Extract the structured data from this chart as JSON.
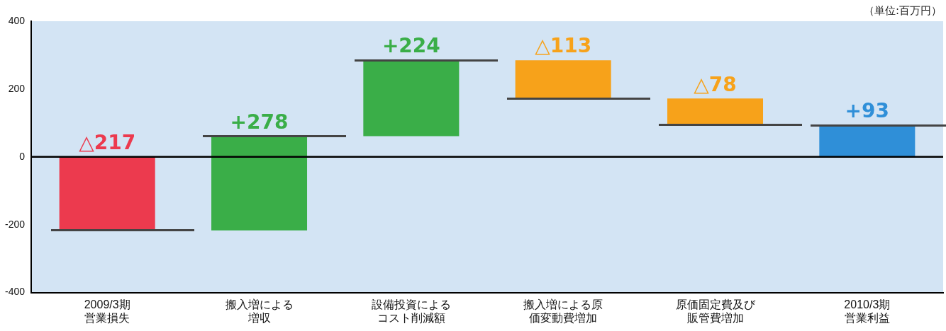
{
  "chart_data": {
    "type": "bar",
    "categories": [
      "2009/3期営業損失",
      "搬入増による増収",
      "設備投資によるコスト削減額",
      "搬入増による原価変動費増加",
      "原価固定費及び販管費増加",
      "2010/3期営業利益"
    ],
    "values": [
      -217,
      278,
      224,
      -113,
      -78,
      93
    ],
    "base": [
      0,
      -217,
      61,
      285,
      172,
      0
    ],
    "colors": [
      "#ec3a4e",
      "#3aae48",
      "#3aae48",
      "#f7a21a",
      "#f7a21a",
      "#2f8fd8"
    ],
    "value_labels": [
      "△217",
      "+278",
      "+224",
      "△113",
      "△78",
      "+93"
    ],
    "ylim": [
      -400,
      400
    ],
    "yticks": [
      -400,
      -200,
      0,
      200,
      400
    ],
    "grid": false,
    "ref_lines": [
      {
        "axis": "y",
        "value": 0,
        "color": "#000000"
      }
    ],
    "annotations": [
      "（単位:百万円）"
    ]
  }
}
